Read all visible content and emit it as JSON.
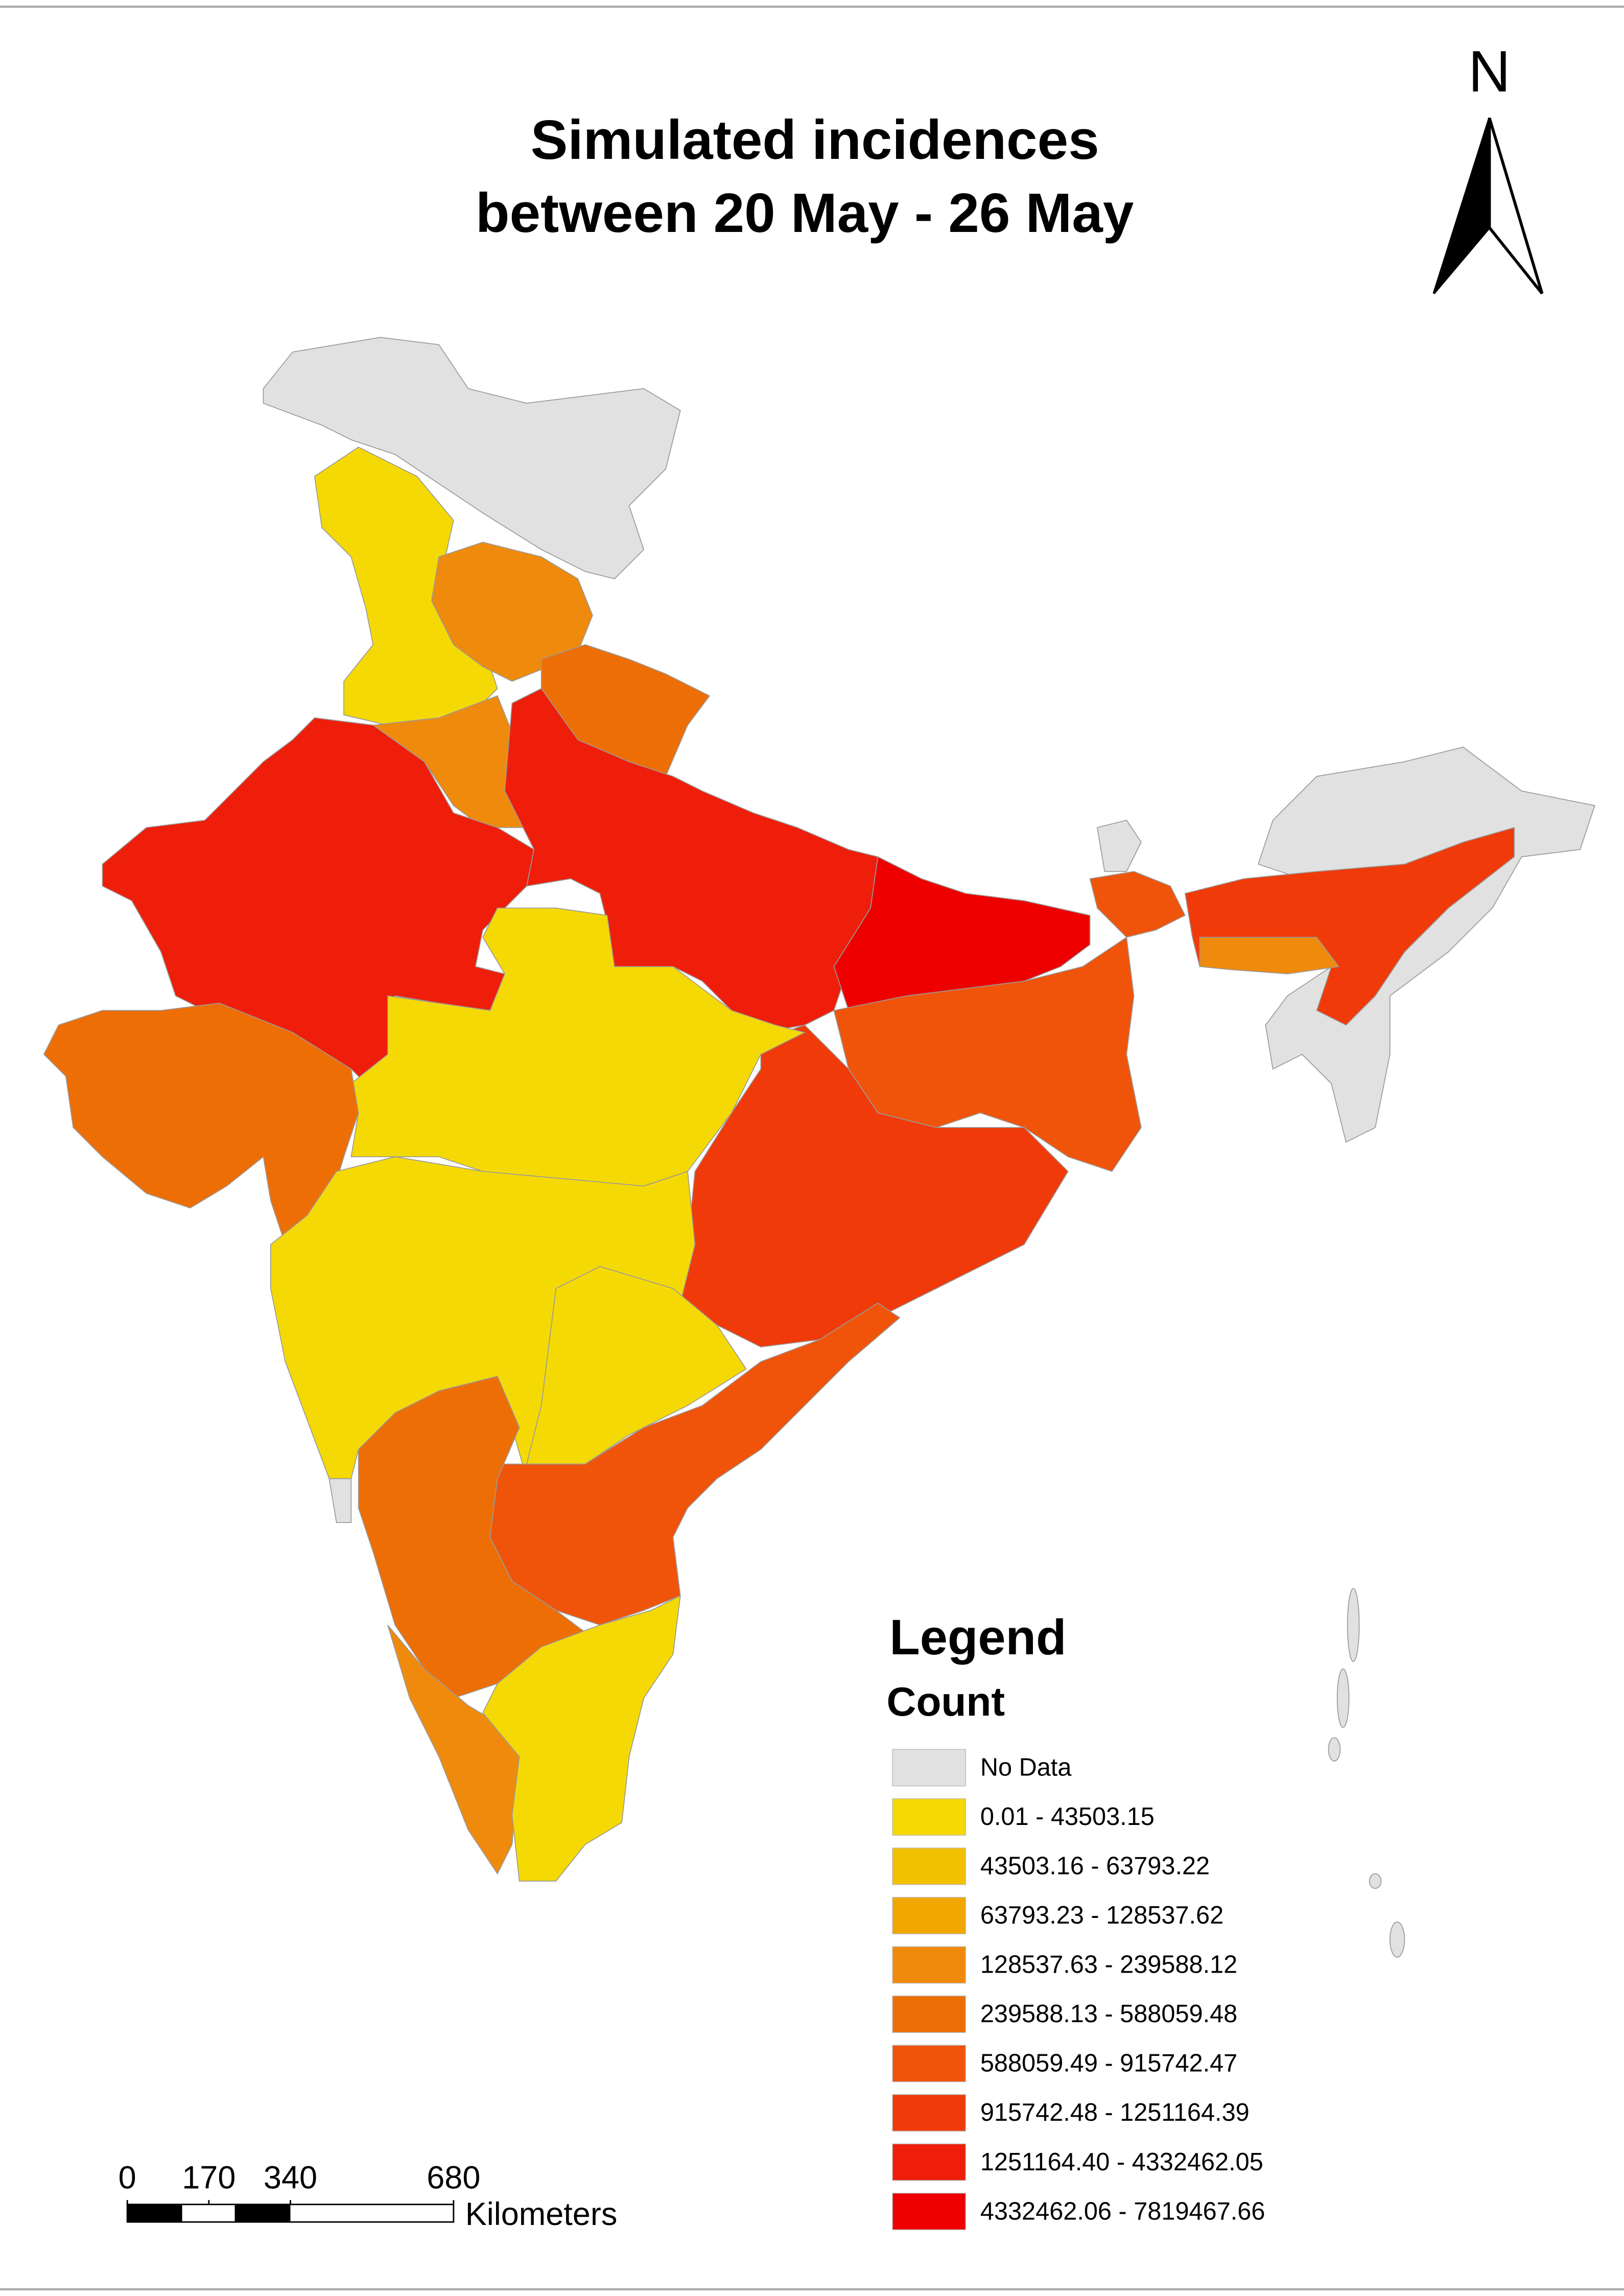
{
  "title": [
    "Simulated incidences",
    "between 20 May - 26 May"
  ],
  "north": "N",
  "legend": {
    "title": "Legend",
    "subtitle": "Count",
    "items": [
      {
        "label": "No Data",
        "color": "#e1e1e1"
      },
      {
        "label": "0.01 - 43503.15",
        "color": "#f5d905"
      },
      {
        "label": "43503.16 - 63793.22",
        "color": "#f3c000"
      },
      {
        "label": "63793.23 - 128537.62",
        "color": "#f1a600"
      },
      {
        "label": "128537.63 - 239588.12",
        "color": "#f08a0c"
      },
      {
        "label": "239588.13 - 588059.48",
        "color": "#ee6e06"
      },
      {
        "label": "588059.49 - 915742.47",
        "color": "#f0540a"
      },
      {
        "label": "915742.48 - 1251164.39",
        "color": "#f03a0a"
      },
      {
        "label": "1251164.40 - 4332462.05",
        "color": "#ee1e0a"
      },
      {
        "label": "4332462.06 - 7819467.66",
        "color": "#ee0000"
      }
    ]
  },
  "scale_bar": {
    "ticks": [
      0,
      170,
      340,
      680
    ],
    "unit": "Kilometers"
  }
}
